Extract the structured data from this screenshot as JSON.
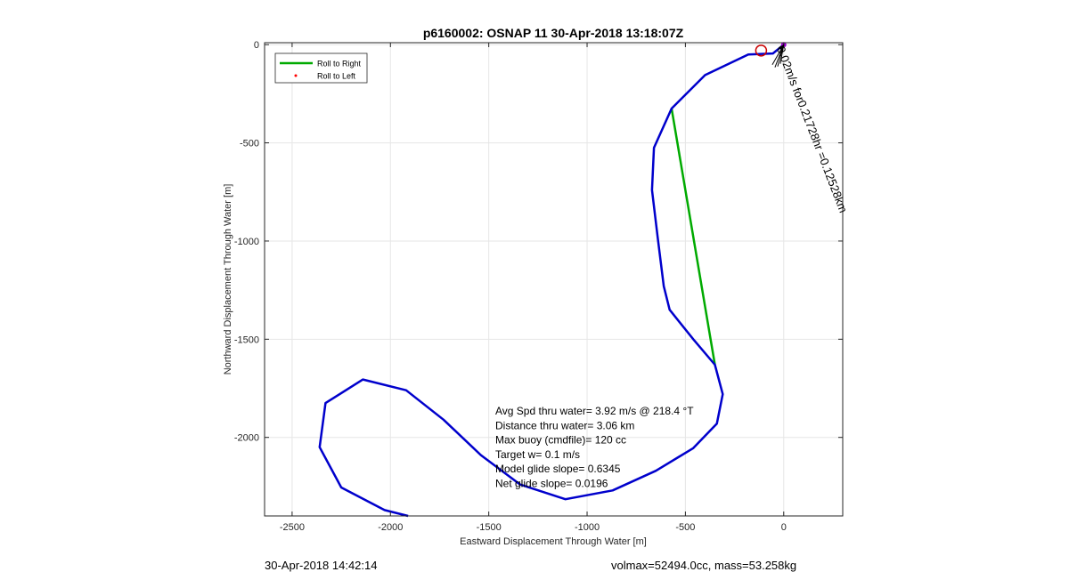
{
  "chart_data": {
    "type": "line",
    "title": "p6160002: OSNAP 11 30-Apr-2018 13:18:07Z",
    "xlabel": "Eastward Displacement Through Water [m]",
    "ylabel": "Northward Displacement Through Water [m]",
    "xlim": [
      -2640,
      300
    ],
    "ylim": [
      -2400,
      10
    ],
    "xticks": [
      -2500,
      -2000,
      -1500,
      -1000,
      -500,
      0
    ],
    "yticks": [
      0,
      -500,
      -1000,
      -1500,
      -2000
    ],
    "grid": true,
    "legend_position": "top-left",
    "series": [
      {
        "name": "Roll to Right",
        "color": "#00aa00",
        "style": "line",
        "x": [
          -570,
          -350
        ],
        "y": [
          -325,
          -1630
        ]
      },
      {
        "name": "Roll to Left",
        "color": "#ff0000",
        "style": "marker",
        "x": [],
        "y": []
      },
      {
        "name": "",
        "color": "#0000cc",
        "style": "line",
        "x": [
          0,
          -55,
          -180,
          -400,
          -570,
          -660,
          -670,
          -640,
          -610,
          -580,
          -460,
          -350,
          -310,
          -340,
          -460,
          -650,
          -870,
          -1110,
          -1340,
          -1540,
          -1730,
          -1920,
          -2140,
          -2330,
          -2360,
          -2250,
          -2030,
          -1910
        ],
        "y": [
          0,
          -45,
          -50,
          -155,
          -325,
          -525,
          -740,
          -990,
          -1230,
          -1350,
          -1500,
          -1630,
          -1780,
          -1930,
          -2055,
          -2170,
          -2270,
          -2315,
          -2240,
          -2090,
          -1910,
          -1760,
          -1705,
          -1825,
          -2050,
          -2255,
          -2370,
          -2400
        ]
      },
      {
        "name": "",
        "color": "#cc0000",
        "style": "marker",
        "x": [
          -115
        ],
        "y": [
          -30
        ]
      }
    ],
    "annotations": {
      "stats": [
        "Avg Spd thru water=  3.92 m/s @ 218.4 °T",
        "Distance thru water=  3.06 km",
        "Max buoy (cmdfile)= 120 cc",
        "Target w= 0.1 m/s",
        "Model glide slope= 0.6345",
        "Net glide slope= 0.0196"
      ],
      "current_label": "0.02m/s for0.21728hr =0.12528km",
      "current_arrow": {
        "x0": 0,
        "y0": 0,
        "x1": -40,
        "y1": -120
      }
    }
  },
  "footer": {
    "date": "30-Apr-2018 14:42:14",
    "mass": "volmax=52494.0cc, mass=53.258kg"
  }
}
